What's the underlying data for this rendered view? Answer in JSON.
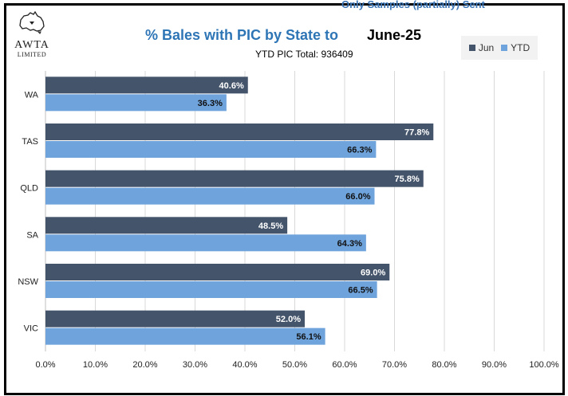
{
  "header": {
    "cutoff_text": "Only Samples (partially) Sent",
    "logo_name": "AWTA",
    "logo_sub": "LIMITED",
    "title": "% Bales with PIC by State to",
    "title_date": "June-25",
    "subtitle": "YTD PIC Total:  936409"
  },
  "colors": {
    "jun": "#44546a",
    "ytd": "#6fa3dc",
    "grid": "#d9d9d9",
    "axis": "#bfbfbf"
  },
  "chart_data": {
    "type": "bar",
    "orientation": "horizontal",
    "categories": [
      "WA",
      "TAS",
      "QLD",
      "SA",
      "NSW",
      "VIC"
    ],
    "series": [
      {
        "name": "Jun",
        "values": [
          40.6,
          77.8,
          75.8,
          48.5,
          69.0,
          52.0
        ]
      },
      {
        "name": "YTD",
        "values": [
          36.3,
          66.3,
          66.0,
          64.3,
          66.5,
          56.1
        ]
      }
    ],
    "xlim": [
      0,
      100
    ],
    "x_ticks": [
      "0.0%",
      "10.0%",
      "20.0%",
      "30.0%",
      "40.0%",
      "50.0%",
      "60.0%",
      "70.0%",
      "80.0%",
      "90.0%",
      "100.0%"
    ],
    "grid": true,
    "legend_position": "top-right",
    "data_labels": true,
    "value_format": "percent-1dp"
  }
}
